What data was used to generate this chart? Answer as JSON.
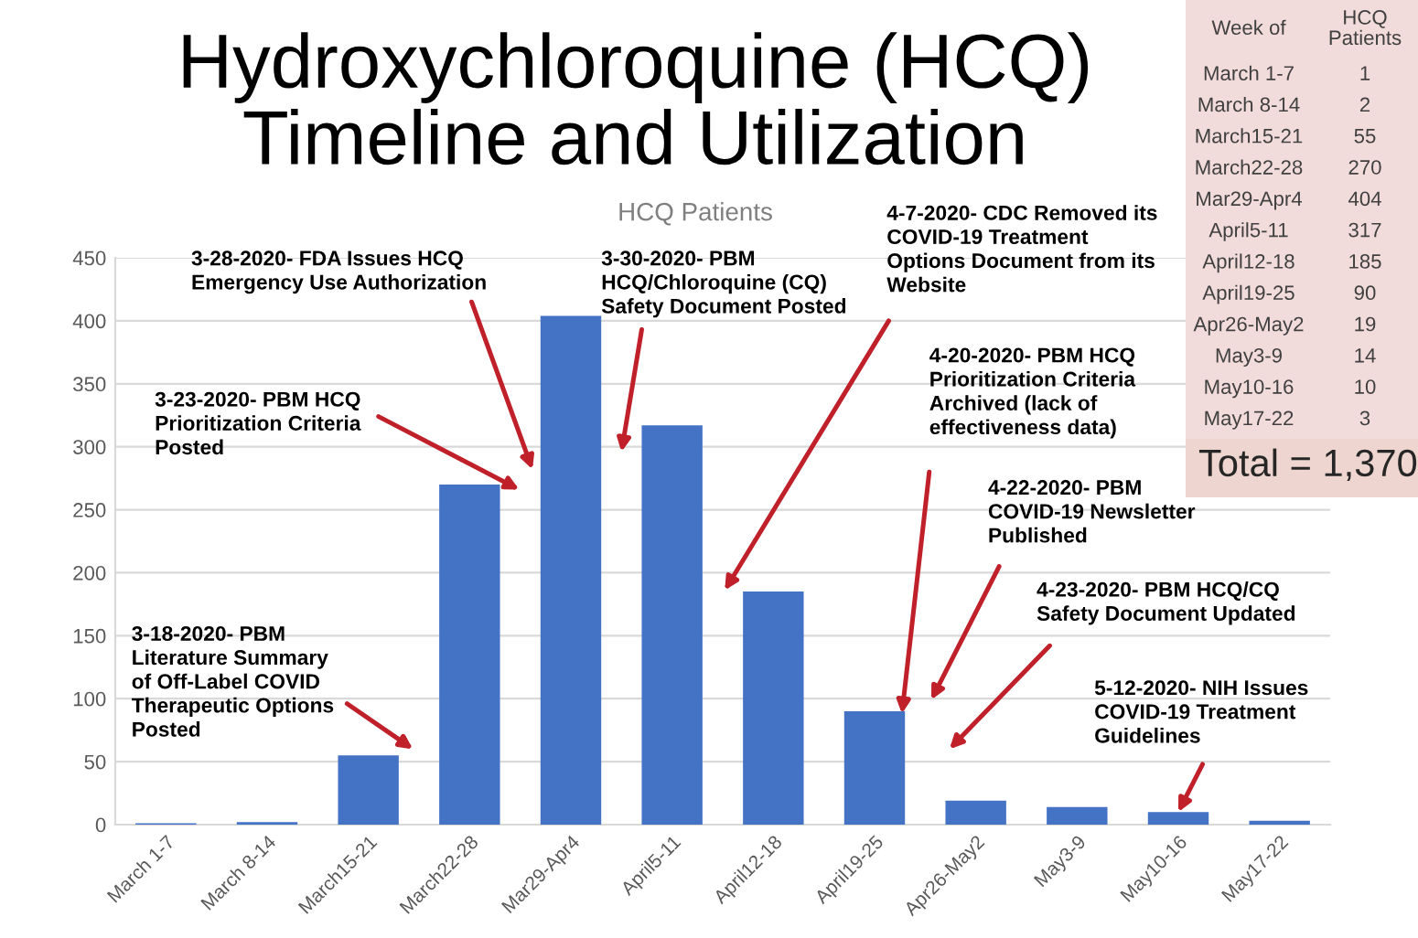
{
  "chart_data": [
    {
      "type": "bar",
      "title": "Hydroxychloroquine (HCQ)\nTimeline and Utilization",
      "subtitle": "HCQ Patients",
      "categories": [
        "March 1-7",
        "March 8-14",
        "March15-21",
        "March22-28",
        "Mar29-Apr4",
        "April5-11",
        "April12-18",
        "April19-25",
        "Apr26-May2",
        "May3-9",
        "May10-16",
        "May17-22"
      ],
      "values": [
        1,
        2,
        55,
        270,
        404,
        317,
        185,
        90,
        19,
        14,
        10,
        3
      ],
      "color": "#4472c4",
      "ylim": [
        0,
        450
      ],
      "yticks": [
        0,
        50,
        100,
        150,
        200,
        250,
        300,
        350,
        400,
        450
      ],
      "grid": "y",
      "annotations": [
        "3-18-2020- PBM\nLiterature Summary\nof Off-Label COVID\nTherapeutic Options\nPosted",
        "3-23-2020- PBM HCQ\nPrioritization Criteria\nPosted",
        "3-28-2020- FDA Issues HCQ\nEmergency Use Authorization",
        "3-30-2020- PBM\nHCQ/Chloroquine (CQ)\nSafety Document Posted",
        "4-7-2020- CDC Removed its\nCOVID-19 Treatment\nOptions Document from its\nWebsite",
        "4-20-2020- PBM HCQ\nPrioritization Criteria\nArchived (lack of\neffectiveness data)",
        "4-22-2020- PBM\nCOVID-19 Newsletter\nPublished",
        "4-23-2020- PBM HCQ/CQ\nSafety Document Updated",
        {
          "text": "5-12-2020- NIH Issues\nCOVID-19 Treatment\nGuidelines",
          "x": "May10-16",
          "y": 10
        }
      ]
    },
    {
      "type": "other",
      "categories": [
        "March 1-7",
        "March 8-14",
        "March15-21",
        "March22-28",
        "Mar29-Apr4",
        "April5-11",
        "April12-18",
        "April19-25",
        "Apr26-May2",
        "May3-9",
        "May10-16",
        "May17-22"
      ],
      "values": [
        1,
        2,
        55,
        270,
        404,
        317,
        185,
        90,
        19,
        14,
        10,
        3
      ],
      "data_labels": true,
      "annotations": [
        "Week of",
        "HCQ\nPatients",
        "Total = 1,370"
      ]
    }
  ]
}
